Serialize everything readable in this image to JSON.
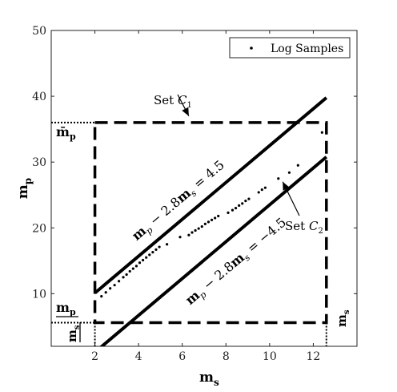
{
  "chart_data": {
    "type": "scatter",
    "xlabel": "m",
    "xlabel_sub": "s",
    "ylabel": "m",
    "ylabel_sub": "p",
    "xlim": [
      0,
      14
    ],
    "ylim": [
      2,
      50
    ],
    "xticks": [
      2,
      4,
      6,
      8,
      10,
      12
    ],
    "yticks": [
      10,
      20,
      30,
      40,
      50
    ],
    "xtick_labels": [
      "2",
      "4",
      "6",
      "8",
      "10",
      "12"
    ],
    "ytick_labels": [
      "10",
      "20",
      "30",
      "40",
      "50"
    ],
    "legend": {
      "position": "top-right",
      "entries": [
        "Log Samples"
      ]
    },
    "series": [
      {
        "name": "Log Samples",
        "points": [
          [
            2.3,
            9.6
          ],
          [
            2.5,
            10.2
          ],
          [
            2.7,
            10.8
          ],
          [
            2.9,
            11.3
          ],
          [
            3.1,
            11.9
          ],
          [
            3.3,
            12.5
          ],
          [
            3.45,
            12.9
          ],
          [
            3.6,
            13.4
          ],
          [
            3.75,
            13.8
          ],
          [
            3.9,
            14.2
          ],
          [
            4.05,
            14.7
          ],
          [
            4.2,
            15.1
          ],
          [
            4.35,
            15.5
          ],
          [
            4.5,
            15.9
          ],
          [
            4.65,
            16.3
          ],
          [
            4.8,
            16.7
          ],
          [
            4.95,
            17.1
          ],
          [
            5.3,
            17.5
          ],
          [
            5.9,
            18.6
          ],
          [
            6.3,
            18.9
          ],
          [
            6.45,
            19.3
          ],
          [
            6.6,
            19.6
          ],
          [
            6.75,
            19.9
          ],
          [
            6.9,
            20.2
          ],
          [
            7.05,
            20.6
          ],
          [
            7.2,
            20.9
          ],
          [
            7.35,
            21.2
          ],
          [
            7.5,
            21.5
          ],
          [
            7.65,
            21.8
          ],
          [
            8.1,
            22.3
          ],
          [
            8.3,
            22.7
          ],
          [
            8.45,
            23.0
          ],
          [
            8.6,
            23.4
          ],
          [
            8.75,
            23.7
          ],
          [
            8.9,
            24.1
          ],
          [
            9.05,
            24.4
          ],
          [
            9.5,
            25.4
          ],
          [
            9.65,
            25.8
          ],
          [
            9.8,
            26.1
          ],
          [
            10.4,
            27.5
          ],
          [
            10.9,
            28.4
          ],
          [
            11.3,
            29.5
          ],
          [
            12.4,
            34.5
          ]
        ]
      }
    ],
    "lines": [
      {
        "label_text": "m_p − 2.8m_s = 4.5",
        "slope": 2.8,
        "intercept": 4.5,
        "x_from": 2.0,
        "x_to": 12.6
      },
      {
        "label_text": "m_p − 2.8m_s = −4.5",
        "slope": 2.8,
        "intercept": -4.5,
        "x_from": 2.0,
        "x_to": 12.6
      }
    ],
    "set_box": {
      "x": [
        2.0,
        12.6
      ],
      "y": [
        5.6,
        36.0
      ]
    },
    "reference_values": {
      "mp_bar": {
        "label": "m̄",
        "sub": "p",
        "value": 36.0
      },
      "mp_under": {
        "label": "m",
        "sub": "p",
        "value": 5.6
      },
      "ms_under": {
        "label": "m",
        "sub": "s",
        "value": 2.0
      },
      "ms_bar": {
        "label": "m",
        "sub": "s",
        "value": 12.6
      }
    },
    "annotations": [
      {
        "text": "Set ",
        "math": "C",
        "sub": "1",
        "target": [
          6.3,
          37.0
        ]
      },
      {
        "text": "Set ",
        "math": "C",
        "sub": "2",
        "target": [
          10.6,
          27.0
        ]
      }
    ],
    "grid": false
  }
}
